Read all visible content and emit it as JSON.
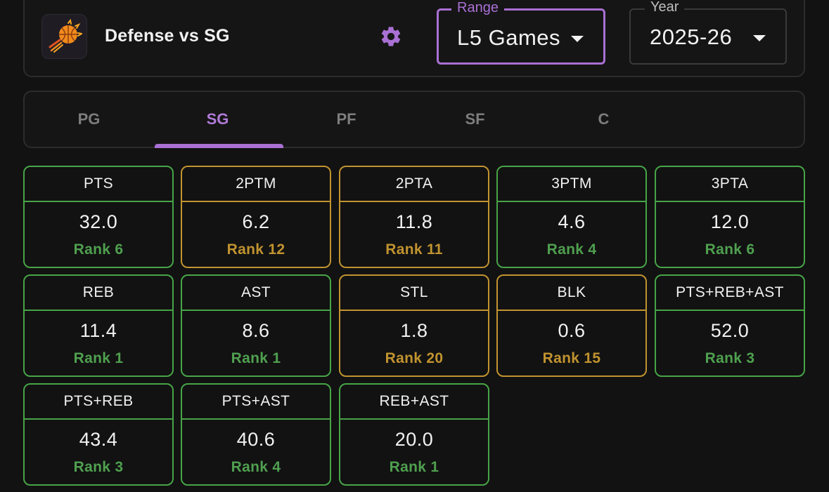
{
  "header": {
    "team_logo": "phoenix-suns-logo",
    "title": "Defense vs SG",
    "settings_icon": "gear-icon"
  },
  "range_select": {
    "legend": "Range",
    "value": "L5 Games"
  },
  "year_select": {
    "legend": "Year",
    "value": "2025-26"
  },
  "tabs": {
    "items": [
      {
        "label": "PG"
      },
      {
        "label": "SG"
      },
      {
        "label": "PF"
      },
      {
        "label": "SF"
      },
      {
        "label": "C"
      }
    ],
    "active": "SG"
  },
  "colors": {
    "accent": "#a970d4",
    "good": "#47a447",
    "mid": "#c1932f",
    "background": "#121212"
  },
  "stats": [
    {
      "label": "PTS",
      "value": "32.0",
      "rank": "Rank 6",
      "tier": "good"
    },
    {
      "label": "2PTM",
      "value": "6.2",
      "rank": "Rank 12",
      "tier": "mid"
    },
    {
      "label": "2PTA",
      "value": "11.8",
      "rank": "Rank 11",
      "tier": "mid"
    },
    {
      "label": "3PTM",
      "value": "4.6",
      "rank": "Rank 4",
      "tier": "good"
    },
    {
      "label": "3PTA",
      "value": "12.0",
      "rank": "Rank 6",
      "tier": "good"
    },
    {
      "label": "REB",
      "value": "11.4",
      "rank": "Rank 1",
      "tier": "good"
    },
    {
      "label": "AST",
      "value": "8.6",
      "rank": "Rank 1",
      "tier": "good"
    },
    {
      "label": "STL",
      "value": "1.8",
      "rank": "Rank 20",
      "tier": "mid"
    },
    {
      "label": "BLK",
      "value": "0.6",
      "rank": "Rank 15",
      "tier": "mid"
    },
    {
      "label": "PTS+REB+AST",
      "value": "52.0",
      "rank": "Rank 3",
      "tier": "good"
    },
    {
      "label": "PTS+REB",
      "value": "43.4",
      "rank": "Rank 3",
      "tier": "good"
    },
    {
      "label": "PTS+AST",
      "value": "40.6",
      "rank": "Rank 4",
      "tier": "good"
    },
    {
      "label": "REB+AST",
      "value": "20.0",
      "rank": "Rank 1",
      "tier": "good"
    }
  ]
}
